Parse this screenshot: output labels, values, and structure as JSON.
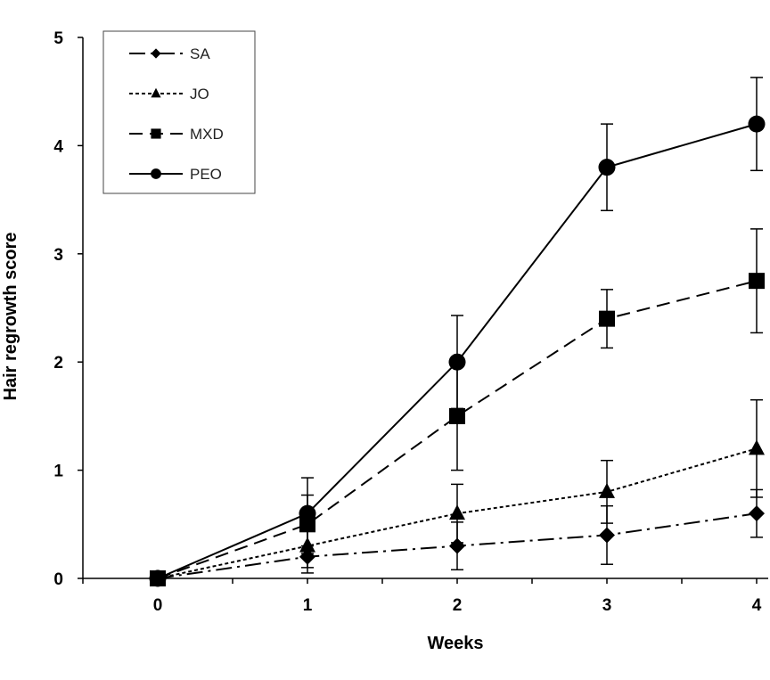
{
  "chart_data": {
    "type": "line",
    "title": "",
    "xlabel": "Weeks",
    "ylabel": "Hair regrowth score",
    "x": [
      0,
      1,
      2,
      3,
      4
    ],
    "xlim": [
      0,
      4
    ],
    "ylim": [
      0,
      5
    ],
    "xticks": [
      "0",
      "1",
      "2",
      "3",
      "4"
    ],
    "yticks": [
      "0",
      "1",
      "2",
      "3",
      "4",
      "5"
    ],
    "grid": false,
    "legend_position": "top-left",
    "series": [
      {
        "name": "SA",
        "marker": "diamond",
        "line_style": "dash-dot",
        "values": [
          0,
          0.2,
          0.3,
          0.4,
          0.6
        ],
        "error": [
          0,
          0.1,
          0.22,
          0.27,
          0.22
        ]
      },
      {
        "name": "JO",
        "marker": "triangle",
        "line_style": "dotted",
        "values": [
          0,
          0.3,
          0.6,
          0.8,
          1.2
        ],
        "error": [
          0,
          0.25,
          0.27,
          0.29,
          0.45
        ]
      },
      {
        "name": "MXD",
        "marker": "square",
        "line_style": "dashed",
        "values": [
          0,
          0.5,
          1.5,
          2.4,
          2.75
        ],
        "error": [
          0,
          0.27,
          0.5,
          0.27,
          0.48
        ]
      },
      {
        "name": "PEO",
        "marker": "circle",
        "line_style": "solid",
        "values": [
          0,
          0.6,
          2.0,
          3.8,
          4.2
        ],
        "error": [
          0,
          0.33,
          0.43,
          0.4,
          0.43
        ]
      }
    ]
  }
}
